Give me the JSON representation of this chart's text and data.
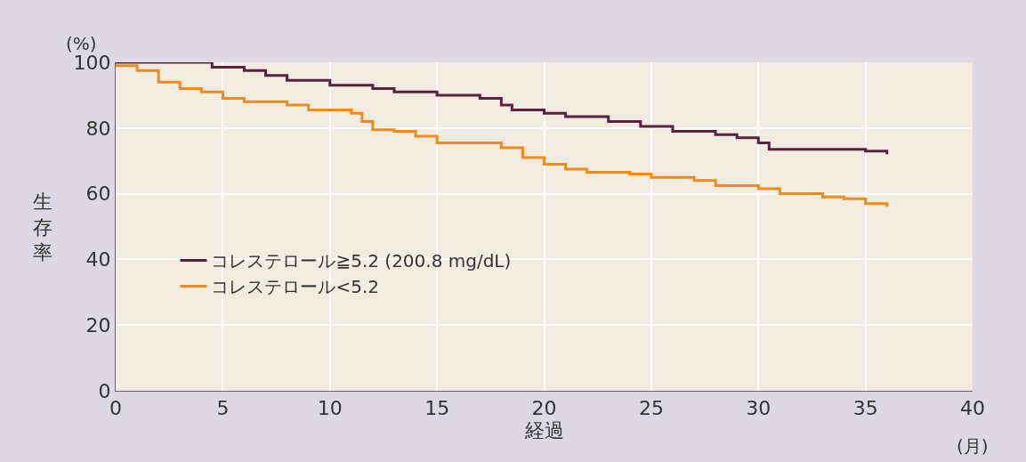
{
  "chart_data": {
    "type": "step",
    "xlabel": "経過",
    "ylabel": "生存率",
    "annotations": [
      "(%)",
      "(月)"
    ],
    "xlim": [
      0,
      40
    ],
    "xticks": [
      0,
      5,
      10,
      15,
      20,
      25,
      30,
      35,
      40
    ],
    "ylim": [
      0,
      100
    ],
    "yticks": [
      0,
      20,
      40,
      60,
      80,
      100
    ],
    "grid": true,
    "legend": "left",
    "series": [
      {
        "name": "コレステロール≧5.2 (200.8 mg/dL)",
        "color": "#5a2040",
        "x": [
          0,
          3.8,
          4.5,
          6,
          7,
          8,
          10,
          12,
          13,
          15,
          17,
          18,
          18.5,
          20,
          21,
          23,
          24.5,
          26,
          28,
          29,
          30,
          30.5,
          35,
          36
        ],
        "values": [
          100,
          100,
          98.5,
          97.5,
          96,
          94.5,
          93,
          92,
          91,
          90,
          89,
          87,
          85.5,
          84.5,
          83.5,
          82,
          80.5,
          79,
          78,
          77,
          75.5,
          73.5,
          73,
          72
        ]
      },
      {
        "name": "コレステロール<5.2",
        "color": "#f08a1e",
        "x": [
          0,
          1,
          2,
          3,
          4,
          5,
          6,
          8,
          9,
          11,
          11.5,
          12,
          13,
          14,
          15,
          18,
          19,
          20,
          21,
          22,
          24,
          25,
          27,
          28,
          30,
          31,
          33,
          34,
          35,
          36
        ],
        "values": [
          99,
          97.5,
          94,
          92,
          91,
          89,
          88,
          87,
          85.5,
          84.5,
          82,
          79.5,
          79,
          77.5,
          75.5,
          74,
          71,
          69,
          67.5,
          66.5,
          66,
          65,
          64,
          62.5,
          61.5,
          60,
          59,
          58.5,
          57,
          56
        ]
      }
    ]
  }
}
